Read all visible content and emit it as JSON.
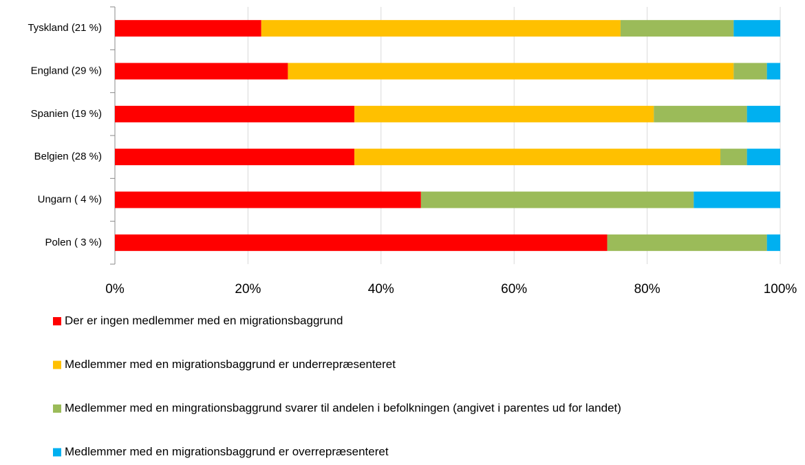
{
  "chart_data": {
    "type": "stacked_bar_horizontal",
    "categories": [
      "Tyskland (21 %)",
      "England (29 %)",
      "Spanien (19 %)",
      "Belgien (28 %)",
      "Ungarn (  4 %)",
      "Polen (  3 %)"
    ],
    "series": [
      {
        "name": "Der er ingen medlemmer med en migrationsbaggrund",
        "color": "#ff0000",
        "values": [
          22,
          26,
          36,
          36,
          46,
          74
        ]
      },
      {
        "name": "Medlemmer med en migrationsbaggrund er underrepræsenteret",
        "color": "#ffc000",
        "values": [
          54,
          67,
          45,
          55,
          0,
          0
        ]
      },
      {
        "name": "Medlemmer med en mingrationsbaggrund svarer til andelen i befolkningen (angivet i parentes ud for landet)",
        "color": "#9bbb59",
        "values": [
          17,
          5,
          14,
          4,
          41,
          24
        ]
      },
      {
        "name": "Medlemmer med en migrationsbaggrund er overrepræsenteret",
        "color": "#00b0f0",
        "values": [
          7,
          2,
          5,
          5,
          13,
          2
        ]
      }
    ],
    "xlim": [
      0,
      100
    ],
    "xticks": [
      {
        "value": 0,
        "label": "0%"
      },
      {
        "value": 20,
        "label": "20%"
      },
      {
        "value": 40,
        "label": "40%"
      },
      {
        "value": 60,
        "label": "60%"
      },
      {
        "value": 80,
        "label": "80%"
      },
      {
        "value": 100,
        "label": "100%"
      }
    ],
    "grid": true,
    "legend": "bottom"
  }
}
